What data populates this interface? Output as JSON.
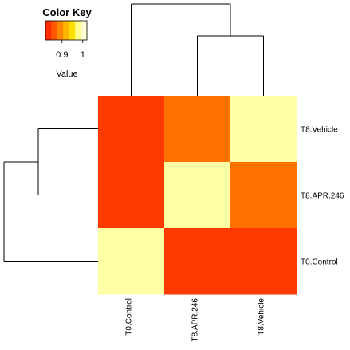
{
  "chart_data": {
    "type": "heatmap",
    "title": "",
    "color_key": {
      "title": "Color Key",
      "value_label": "Value",
      "ticks": [
        {
          "value": 0.9,
          "label": "0.9"
        },
        {
          "value": 1.0,
          "label": "1"
        }
      ],
      "range": [
        0.82,
        1.02
      ],
      "colors": [
        "#ff2c00",
        "#ff5a00",
        "#ff8a00",
        "#ffb400",
        "#ffde00",
        "#ffff8a",
        "#ffffd4"
      ]
    },
    "columns": [
      "T0.Control",
      "T8.APR.246",
      "T8.Vehicle"
    ],
    "rows": [
      "T8.Vehicle",
      "T8.APR.246",
      "T0.Control"
    ],
    "values": [
      [
        0.83,
        0.87,
        1.0
      ],
      [
        0.83,
        1.0,
        0.87
      ],
      [
        1.0,
        0.83,
        0.83
      ]
    ],
    "column_dendrogram": "T0.Control joins the cluster of T8.APR.246 and T8.Vehicle",
    "row_dendrogram": "T8.Vehicle and T8.APR.246 cluster first, then join T0.Control"
  }
}
